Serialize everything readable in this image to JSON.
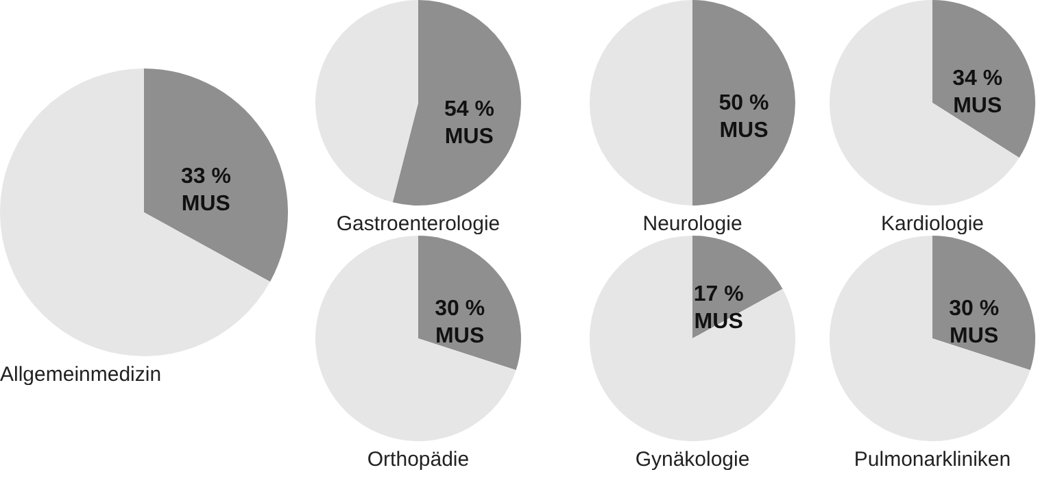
{
  "chart_data": [
    {
      "type": "pie",
      "title": "Allgemeinmedizin",
      "categories": [
        "MUS",
        null
      ],
      "values": [
        33,
        67
      ],
      "colors": [
        "#8f8f8f",
        "#e6e6e6"
      ],
      "value_labels": [
        "33 %",
        null
      ]
    },
    {
      "type": "pie",
      "title": "Gastroenterologie",
      "categories": [
        "MUS",
        null
      ],
      "values": [
        54,
        46
      ],
      "colors": [
        "#8f8f8f",
        "#e6e6e6"
      ],
      "value_labels": [
        "54 %",
        null
      ]
    },
    {
      "type": "pie",
      "title": "Neurologie",
      "categories": [
        "MUS",
        null
      ],
      "values": [
        50,
        50
      ],
      "colors": [
        "#8f8f8f",
        "#e6e6e6"
      ],
      "value_labels": [
        "50 %",
        null
      ]
    },
    {
      "type": "pie",
      "title": "Kardiologie",
      "categories": [
        "MUS",
        null
      ],
      "values": [
        34,
        66
      ],
      "colors": [
        "#8f8f8f",
        "#e6e6e6"
      ],
      "value_labels": [
        "34 %",
        null
      ]
    },
    {
      "type": "pie",
      "title": "Orthopädie",
      "categories": [
        "MUS",
        null
      ],
      "values": [
        30,
        70
      ],
      "colors": [
        "#8f8f8f",
        "#e6e6e6"
      ],
      "value_labels": [
        "30 %",
        null
      ]
    },
    {
      "type": "pie",
      "title": "Gynäkologie",
      "categories": [
        "MUS",
        null
      ],
      "values": [
        17,
        83
      ],
      "colors": [
        "#8f8f8f",
        "#e6e6e6"
      ],
      "value_labels": [
        "17 %",
        null
      ]
    },
    {
      "type": "pie",
      "title": "Pulmonarkliniken",
      "categories": [
        "MUS",
        null
      ],
      "values": [
        30,
        70
      ],
      "colors": [
        "#8f8f8f",
        "#e6e6e6"
      ],
      "value_labels": [
        "30 %",
        null
      ]
    }
  ]
}
